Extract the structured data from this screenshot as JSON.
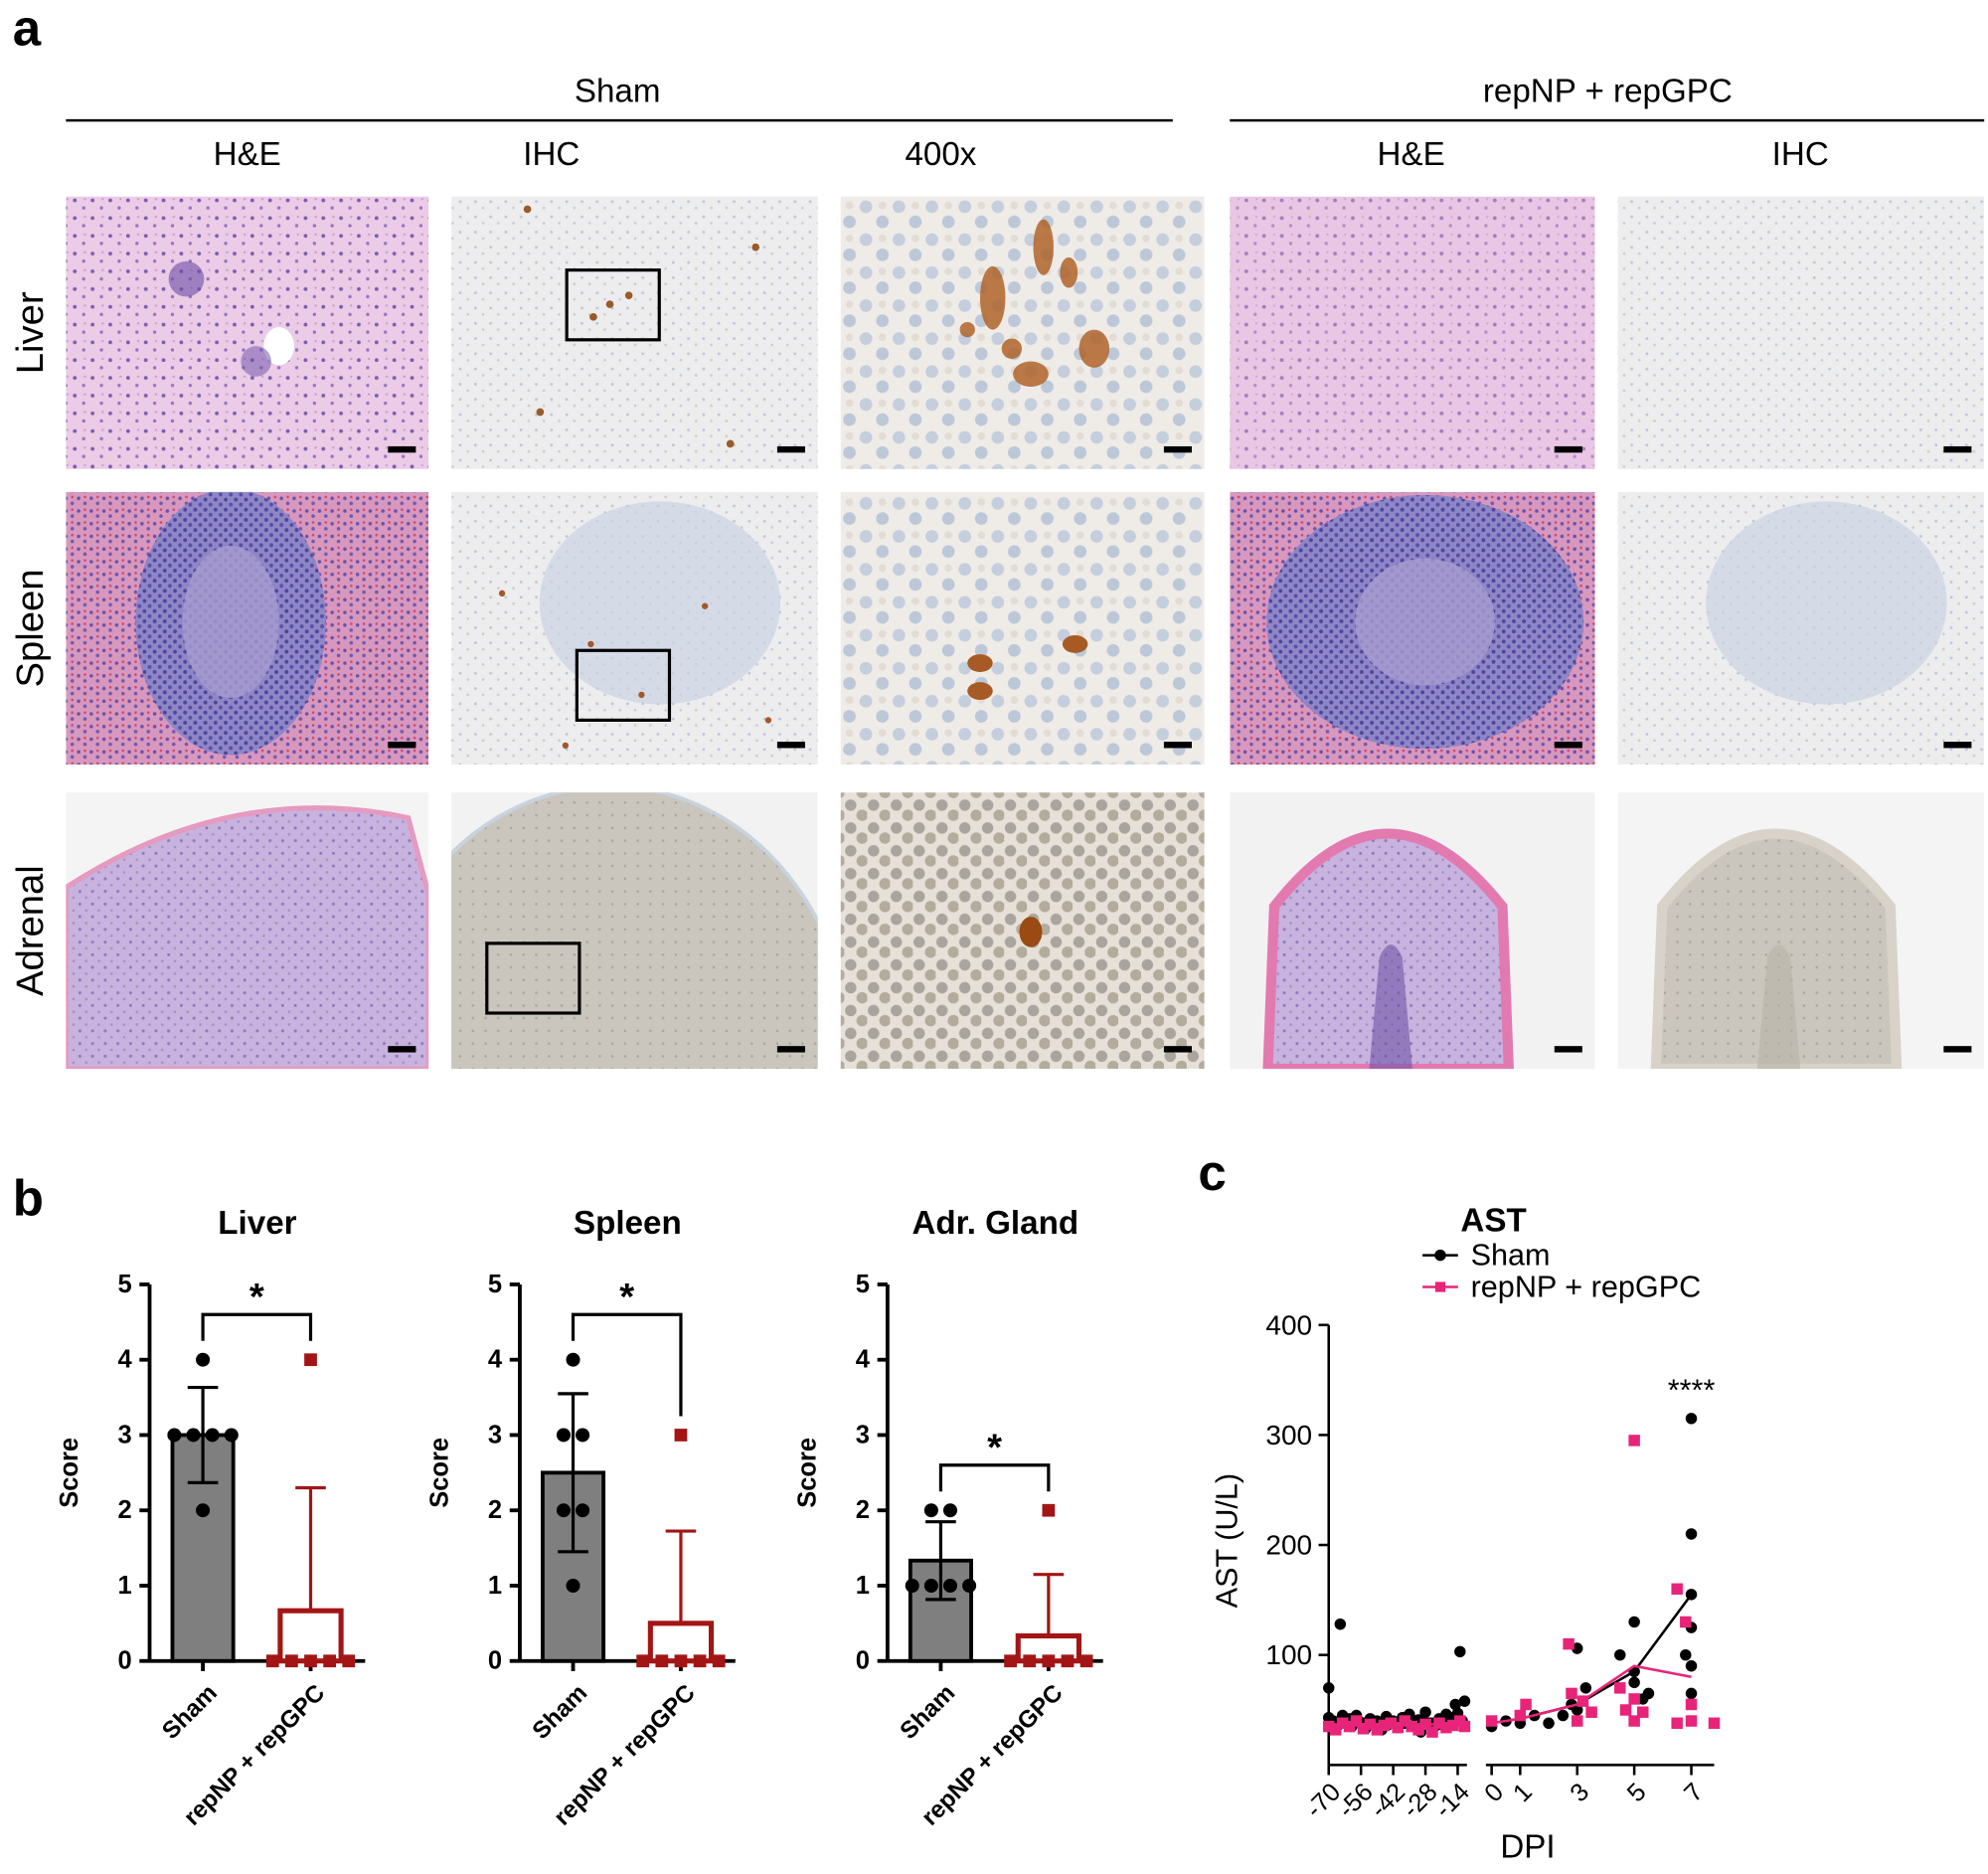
{
  "panel_labels": [
    "a",
    "b",
    "c"
  ],
  "figure_a": {
    "groups": [
      "Sham",
      "repNP + repGPC"
    ],
    "columns": [
      "H&E",
      "IHC",
      "400x",
      "H&E",
      "IHC"
    ],
    "rows": [
      "Liver",
      "Spleen",
      "Adrenal"
    ]
  },
  "chart_data": [
    {
      "type": "bar",
      "title": "Liver",
      "y_label": "Score",
      "categories": [
        "Sham",
        "repNP + repGPC"
      ],
      "colors": [
        "#7f7f7f",
        "#a31515"
      ],
      "values": [
        3,
        0.667
      ],
      "errors": [
        0.632,
        1.633
      ],
      "points": [
        [
          4,
          3,
          3,
          3,
          3,
          2
        ],
        [
          4,
          0,
          0,
          0,
          0,
          0
        ]
      ],
      "ylim": [
        0,
        5
      ],
      "yticks": [
        0,
        1,
        2,
        3,
        4,
        5
      ],
      "annotation": "*"
    },
    {
      "type": "bar",
      "title": "Spleen",
      "y_label": "Score",
      "categories": [
        "Sham",
        "repNP + repGPC"
      ],
      "colors": [
        "#7f7f7f",
        "#a31515"
      ],
      "values": [
        2.5,
        0.5
      ],
      "errors": [
        1.049,
        1.225
      ],
      "points": [
        [
          4,
          3,
          3,
          2,
          2,
          1
        ],
        [
          3,
          0,
          0,
          0,
          0,
          0
        ]
      ],
      "ylim": [
        0,
        5
      ],
      "yticks": [
        0,
        1,
        2,
        3,
        4,
        5
      ],
      "annotation": "*"
    },
    {
      "type": "bar",
      "title": "Adr.  Gland",
      "y_label": "Score",
      "categories": [
        "Sham",
        "repNP + repGPC"
      ],
      "colors": [
        "#7f7f7f",
        "#a31515"
      ],
      "values": [
        1.333,
        0.333
      ],
      "errors": [
        0.516,
        0.816
      ],
      "points": [
        [
          2,
          2,
          1,
          1,
          1,
          1
        ],
        [
          2,
          0,
          0,
          0,
          0,
          0
        ]
      ],
      "ylim": [
        0,
        5
      ],
      "yticks": [
        0,
        1,
        2,
        3,
        4,
        5
      ],
      "annotation": "*"
    },
    {
      "type": "scatter",
      "title": "AST",
      "x_label": "DPI",
      "y_label": "AST (U/L)",
      "ylim": [
        0,
        400
      ],
      "yticks": [
        100,
        200,
        300,
        400
      ],
      "x_segments": [
        {
          "xlim": [
            -70,
            -10
          ],
          "xticks": [
            -70,
            -56,
            -42,
            -28,
            -14
          ]
        },
        {
          "xlim": [
            -0.2,
            7.8
          ],
          "xticks": [
            0,
            1,
            3,
            5,
            7
          ]
        }
      ],
      "annotation": {
        "text": "****",
        "x": 7
      },
      "series": [
        {
          "name": "Sham",
          "color": "#000000",
          "marker": "circle",
          "x": [
            -70,
            -70,
            -68,
            -66,
            -65,
            -64,
            -63,
            -61,
            -60,
            -58,
            -57,
            -55,
            -54,
            -52,
            -50,
            -49,
            -47,
            -45,
            -44,
            -42,
            -40,
            -38,
            -37,
            -35,
            -33,
            -31,
            -30,
            -28,
            -26,
            -24,
            -22,
            -21,
            -19,
            -17,
            -16,
            -15,
            -14,
            -13,
            -12,
            -11,
            0,
            0.5,
            1,
            1.5,
            2,
            2.5,
            3,
            3,
            3.3,
            2.8,
            4.5,
            5,
            5,
            5,
            5.3,
            5.5,
            7,
            7,
            7,
            7,
            7,
            7,
            6.8
          ],
          "values": [
            70,
            43,
            40,
            36,
            128,
            45,
            38,
            42,
            35,
            45,
            40,
            38,
            33,
            42,
            36,
            40,
            32,
            44,
            37,
            40,
            34,
            43,
            38,
            46,
            36,
            41,
            30,
            48,
            38,
            35,
            42,
            37,
            46,
            40,
            43,
            55,
            47,
            103,
            40,
            58,
            35,
            40,
            38,
            45,
            38,
            45,
            50,
            106,
            70,
            55,
            100,
            130,
            85,
            75,
            60,
            65,
            315,
            210,
            155,
            125,
            65,
            90,
            100
          ],
          "trend_x": [
            -70,
            -14,
            0,
            1,
            3,
            5,
            7
          ],
          "trend_values": [
            42,
            42,
            38,
            42,
            55,
            85,
            155
          ]
        },
        {
          "name": "repNP + repGPC",
          "color": "#e8247a",
          "marker": "square",
          "x": [
            -70,
            -67,
            -64,
            -61,
            -58,
            -55,
            -52,
            -49,
            -46,
            -43,
            -40,
            -37,
            -34,
            -31,
            -28,
            -25,
            -22,
            -19,
            -16,
            -13,
            -11,
            0,
            1,
            1.2,
            2.7,
            2.8,
            3,
            3.2,
            3.5,
            4.5,
            4.7,
            5,
            5,
            5,
            5.3,
            6.5,
            6.8,
            7,
            7,
            6.5,
            7.8
          ],
          "values": [
            35,
            32,
            38,
            35,
            40,
            33,
            37,
            32,
            36,
            38,
            34,
            40,
            35,
            32,
            37,
            30,
            38,
            34,
            36,
            40,
            35,
            40,
            45,
            55,
            110,
            65,
            40,
            58,
            48,
            70,
            50,
            295,
            60,
            40,
            48,
            160,
            130,
            40,
            55,
            38,
            38
          ],
          "trend_x": [
            -70,
            -14,
            0,
            1,
            3,
            5,
            7
          ],
          "trend_values": [
            37,
            37,
            38,
            42,
            55,
            90,
            80
          ]
        }
      ]
    }
  ]
}
